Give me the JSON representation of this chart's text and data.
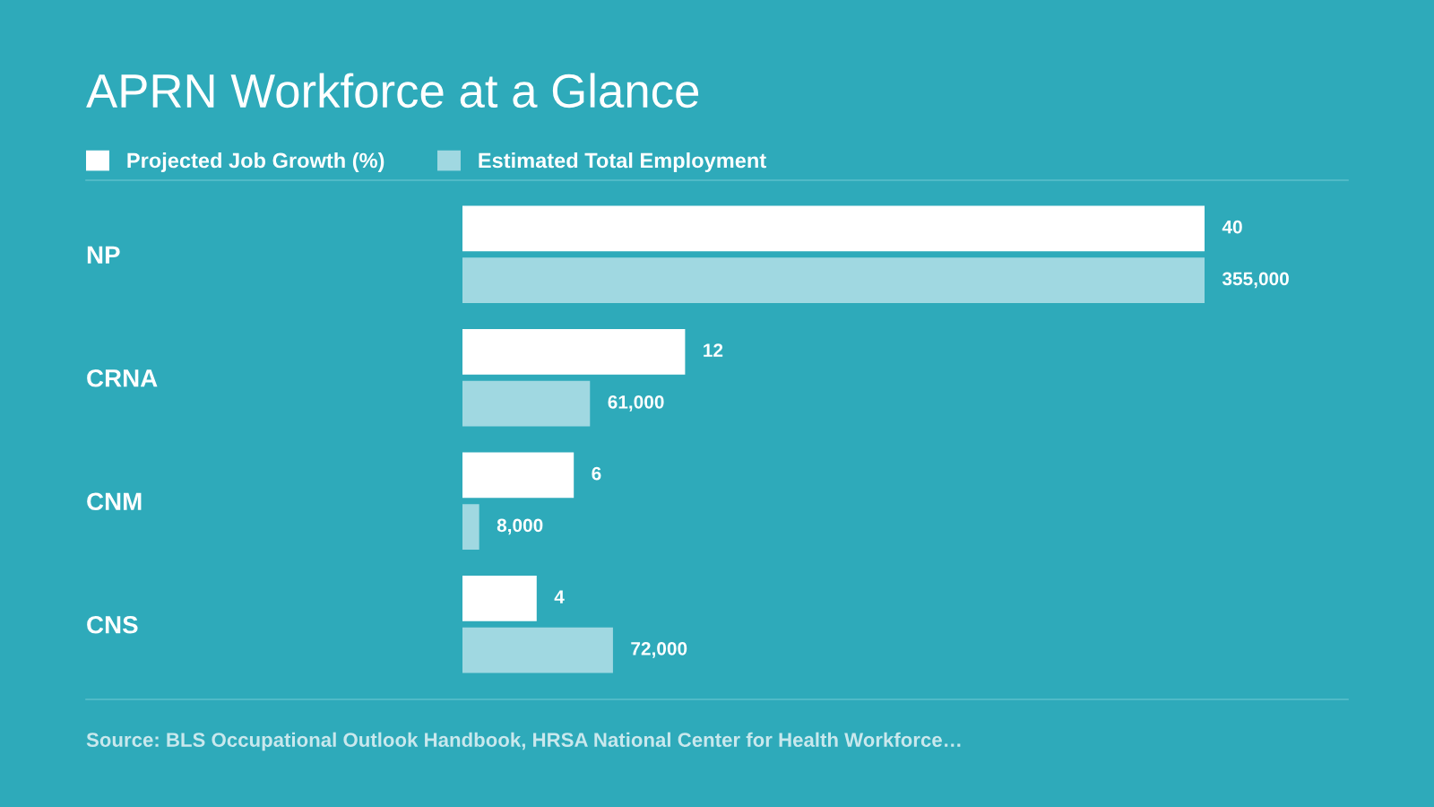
{
  "chart_data": [
    {
      "type": "bar",
      "orientation": "horizontal",
      "title": "APRN Workforce at a Glance",
      "categories": [
        "NP",
        "CRNA",
        "CNM",
        "CNS"
      ],
      "series": [
        {
          "name": "Projected Job Growth (%)",
          "color": "#ffffff",
          "values": [
            40,
            12,
            6,
            4
          ]
        }
      ],
      "xlim": [
        0,
        40
      ],
      "tick_labels": "y",
      "data_labels": true,
      "legend": "top left",
      "annotations": [
        "Source: BLS Occupational Outlook Handbook, HRSA National Center for Health Workforce…"
      ]
    },
    {
      "type": "bar",
      "orientation": "horizontal",
      "categories": [
        null,
        null,
        null,
        null
      ],
      "series": [
        {
          "name": "Estimated Total Employment",
          "color": "#a0d8e1",
          "values": [
            355000,
            61000,
            8000,
            72000
          ],
          "value_labels": [
            "355,000",
            "61,000",
            "8,000",
            "72,000"
          ]
        }
      ],
      "xlim": [
        0,
        355000
      ],
      "tick_labels": false,
      "legend": "top left"
    }
  ]
}
